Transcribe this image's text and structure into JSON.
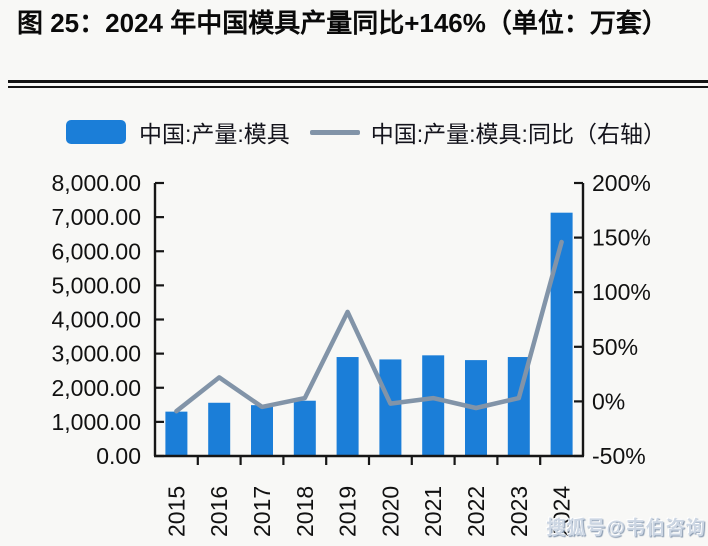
{
  "title": "图 25：2024 年中国模具产量同比+146%（单位：万套）",
  "watermark": "搜狐号@韦伯咨询",
  "colors": {
    "bar": "#1b7ed8",
    "line": "#8294a8",
    "axis": "#161616",
    "text": "#111111",
    "background": "#f8f8f6"
  },
  "chart_data": {
    "type": "bar",
    "subtype": "bar+line combo, dual axis",
    "title": "图 25：2024 年中国模具产量同比+146%（单位：万套）",
    "categories": [
      "2015",
      "2016",
      "2017",
      "2018",
      "2019",
      "2020",
      "2021",
      "2022",
      "2023",
      "2024"
    ],
    "series": [
      {
        "name": "中国:产量:模具",
        "type": "bar",
        "axis": "left",
        "unit": "万套",
        "values": [
          1300,
          1560,
          1490,
          1620,
          2900,
          2830,
          2950,
          2810,
          2900,
          7130
        ]
      },
      {
        "name": "中国:产量:模具:同比（右轴）",
        "type": "line",
        "axis": "right",
        "unit": "%",
        "values": [
          -9,
          22,
          -5,
          3,
          82,
          -2,
          3,
          -6,
          3,
          146
        ]
      }
    ],
    "left_axis": {
      "min": 0,
      "max": 8000,
      "tick_step": 1000,
      "ticks": [
        {
          "value": 0,
          "label": "0.00"
        },
        {
          "value": 1000,
          "label": "1,000.00"
        },
        {
          "value": 2000,
          "label": "2,000.00"
        },
        {
          "value": 3000,
          "label": "3,000.00"
        },
        {
          "value": 4000,
          "label": "4,000.00"
        },
        {
          "value": 5000,
          "label": "5,000.00"
        },
        {
          "value": 6000,
          "label": "6,000.00"
        },
        {
          "value": 7000,
          "label": "7,000.00"
        },
        {
          "value": 8000,
          "label": "8,000.00"
        }
      ]
    },
    "right_axis": {
      "min": -50,
      "max": 200,
      "tick_step": 50,
      "ticks": [
        {
          "value": -50,
          "label": "-50%"
        },
        {
          "value": 0,
          "label": "0%"
        },
        {
          "value": 50,
          "label": "50%"
        },
        {
          "value": 100,
          "label": "100%"
        },
        {
          "value": 150,
          "label": "150%"
        },
        {
          "value": 200,
          "label": "200%"
        }
      ]
    },
    "legend_position": "top",
    "grid": false,
    "x_label_rotation": 90
  }
}
